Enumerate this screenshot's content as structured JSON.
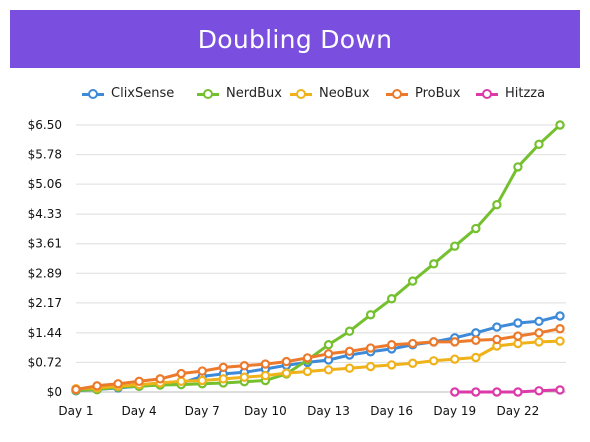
{
  "chart_data": {
    "type": "line",
    "title": "Doubling Down",
    "title_bar_color": "#7a4fe0",
    "x": [
      1,
      2,
      3,
      4,
      5,
      6,
      7,
      8,
      9,
      10,
      11,
      12,
      13,
      14,
      15,
      16,
      17,
      18,
      19,
      20,
      21,
      22,
      23,
      24
    ],
    "x_tick_labels": [
      "Day 1",
      "Day 4",
      "Day 7",
      "Day 10",
      "Day 13",
      "Day 16",
      "Day 19",
      "Day 22"
    ],
    "x_tick_values": [
      1,
      4,
      7,
      10,
      13,
      16,
      19,
      22
    ],
    "y_tick_labels": [
      "$0",
      "$0.72",
      "$1.44",
      "$2.17",
      "$2.89",
      "$3.61",
      "$4.33",
      "$5.06",
      "$5.78",
      "$6.50"
    ],
    "y_tick_values": [
      0,
      0.72,
      1.44,
      2.17,
      2.89,
      3.61,
      4.33,
      5.06,
      5.78,
      6.5
    ],
    "ylim": [
      0,
      6.5
    ],
    "xlim": [
      1,
      24
    ],
    "grid": "horizontal",
    "legend_position": "top",
    "series": [
      {
        "name": "ClixSense",
        "color": "#3d8ad8",
        "values": [
          0.03,
          0.06,
          0.1,
          0.14,
          0.18,
          0.22,
          0.38,
          0.44,
          0.48,
          0.56,
          0.65,
          0.72,
          0.78,
          0.9,
          0.98,
          1.05,
          1.15,
          1.22,
          1.32,
          1.44,
          1.58,
          1.68,
          1.72,
          1.85
        ]
      },
      {
        "name": "NerdBux",
        "color": "#74c02e",
        "values": [
          0.04,
          0.06,
          0.12,
          0.14,
          0.17,
          0.18,
          0.2,
          0.22,
          0.25,
          0.28,
          0.44,
          0.78,
          1.15,
          1.48,
          1.88,
          2.27,
          2.7,
          3.12,
          3.55,
          3.98,
          4.56,
          5.48,
          6.03,
          6.5
        ]
      },
      {
        "name": "NeoBux",
        "color": "#f0b21a",
        "values": [
          0.08,
          0.1,
          0.14,
          0.18,
          0.22,
          0.26,
          0.28,
          0.32,
          0.36,
          0.4,
          0.46,
          0.5,
          0.54,
          0.58,
          0.62,
          0.66,
          0.7,
          0.76,
          0.8,
          0.84,
          1.12,
          1.18,
          1.22,
          1.24
        ]
      },
      {
        "name": "ProBux",
        "color": "#ec7a2c",
        "values": [
          0.06,
          0.15,
          0.2,
          0.26,
          0.32,
          0.45,
          0.51,
          0.6,
          0.64,
          0.68,
          0.74,
          0.83,
          0.93,
          0.99,
          1.07,
          1.15,
          1.18,
          1.22,
          1.22,
          1.26,
          1.28,
          1.36,
          1.44,
          1.54
        ]
      },
      {
        "name": "Hitzza",
        "color": "#dc3aa8",
        "x": [
          19,
          20,
          21,
          22,
          23,
          24
        ],
        "values": [
          0,
          0,
          0,
          0,
          0.03,
          0.05
        ]
      }
    ]
  }
}
